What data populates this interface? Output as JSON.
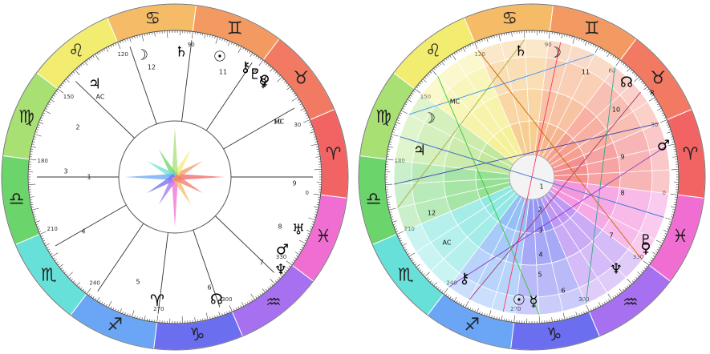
{
  "zodiac": [
    {
      "glyph": "♈",
      "color": "#f26464"
    },
    {
      "glyph": "♉",
      "color": "#f27a63"
    },
    {
      "glyph": "♊",
      "color": "#f39a63"
    },
    {
      "glyph": "♋",
      "color": "#f5bb66"
    },
    {
      "glyph": "♌",
      "color": "#f2ec70"
    },
    {
      "glyph": "♍",
      "color": "#a8e074"
    },
    {
      "glyph": "♎",
      "color": "#6bd46b"
    },
    {
      "glyph": "♏",
      "color": "#66e0d8"
    },
    {
      "glyph": "♐",
      "color": "#6aa6f5"
    },
    {
      "glyph": "♑",
      "color": "#6c6ef0"
    },
    {
      "glyph": "♒",
      "color": "#a770f0"
    },
    {
      "glyph": "♓",
      "color": "#f06ed2"
    }
  ],
  "degree_labels": [
    "0",
    "30",
    "60",
    "90",
    "120",
    "150",
    "180",
    "210",
    "240",
    "270",
    "300",
    "330"
  ],
  "left_chart": {
    "houses": [
      "1",
      "2",
      "3",
      "4",
      "5",
      "6",
      "7",
      "8",
      "9",
      "10",
      "11",
      "12"
    ],
    "angles": {
      "asc": "AC",
      "mc": "MC"
    },
    "planets": [
      {
        "name": "moon",
        "glyph": "☽"
      },
      {
        "name": "saturn",
        "glyph": "♄"
      },
      {
        "name": "sun",
        "glyph": "☉"
      },
      {
        "name": "chiron",
        "glyph": "⚷"
      },
      {
        "name": "pluto",
        "glyph": "♇"
      },
      {
        "name": "venus",
        "glyph": "♀"
      },
      {
        "name": "jupiter",
        "glyph": "♃"
      },
      {
        "name": "mercury",
        "glyph": "☿"
      },
      {
        "name": "mars",
        "glyph": "♂"
      },
      {
        "name": "neptune",
        "glyph": "♆"
      },
      {
        "name": "uranus",
        "glyph": "♅"
      },
      {
        "name": "node",
        "glyph": "☊"
      }
    ]
  },
  "right_chart": {
    "houses": [
      "1",
      "2",
      "3",
      "4",
      "5",
      "6",
      "7",
      "8",
      "9",
      "10",
      "11",
      "12"
    ],
    "angles": {
      "asc": "AC",
      "mc": "MC"
    },
    "node_flag": "R",
    "planets": [
      {
        "name": "saturn",
        "glyph": "♄"
      },
      {
        "name": "moon",
        "glyph": "☽"
      },
      {
        "name": "node",
        "glyph": "☊"
      },
      {
        "name": "mars",
        "glyph": "♂"
      },
      {
        "name": "venus",
        "glyph": "♀"
      },
      {
        "name": "neptune",
        "glyph": "♆"
      },
      {
        "name": "pluto",
        "glyph": "♇"
      },
      {
        "name": "sun",
        "glyph": "☉"
      },
      {
        "name": "mercury",
        "glyph": "☿"
      },
      {
        "name": "chiron",
        "glyph": "⚷"
      },
      {
        "name": "moon-2",
        "glyph": "☽"
      },
      {
        "name": "jupiter",
        "glyph": "♃"
      }
    ]
  }
}
